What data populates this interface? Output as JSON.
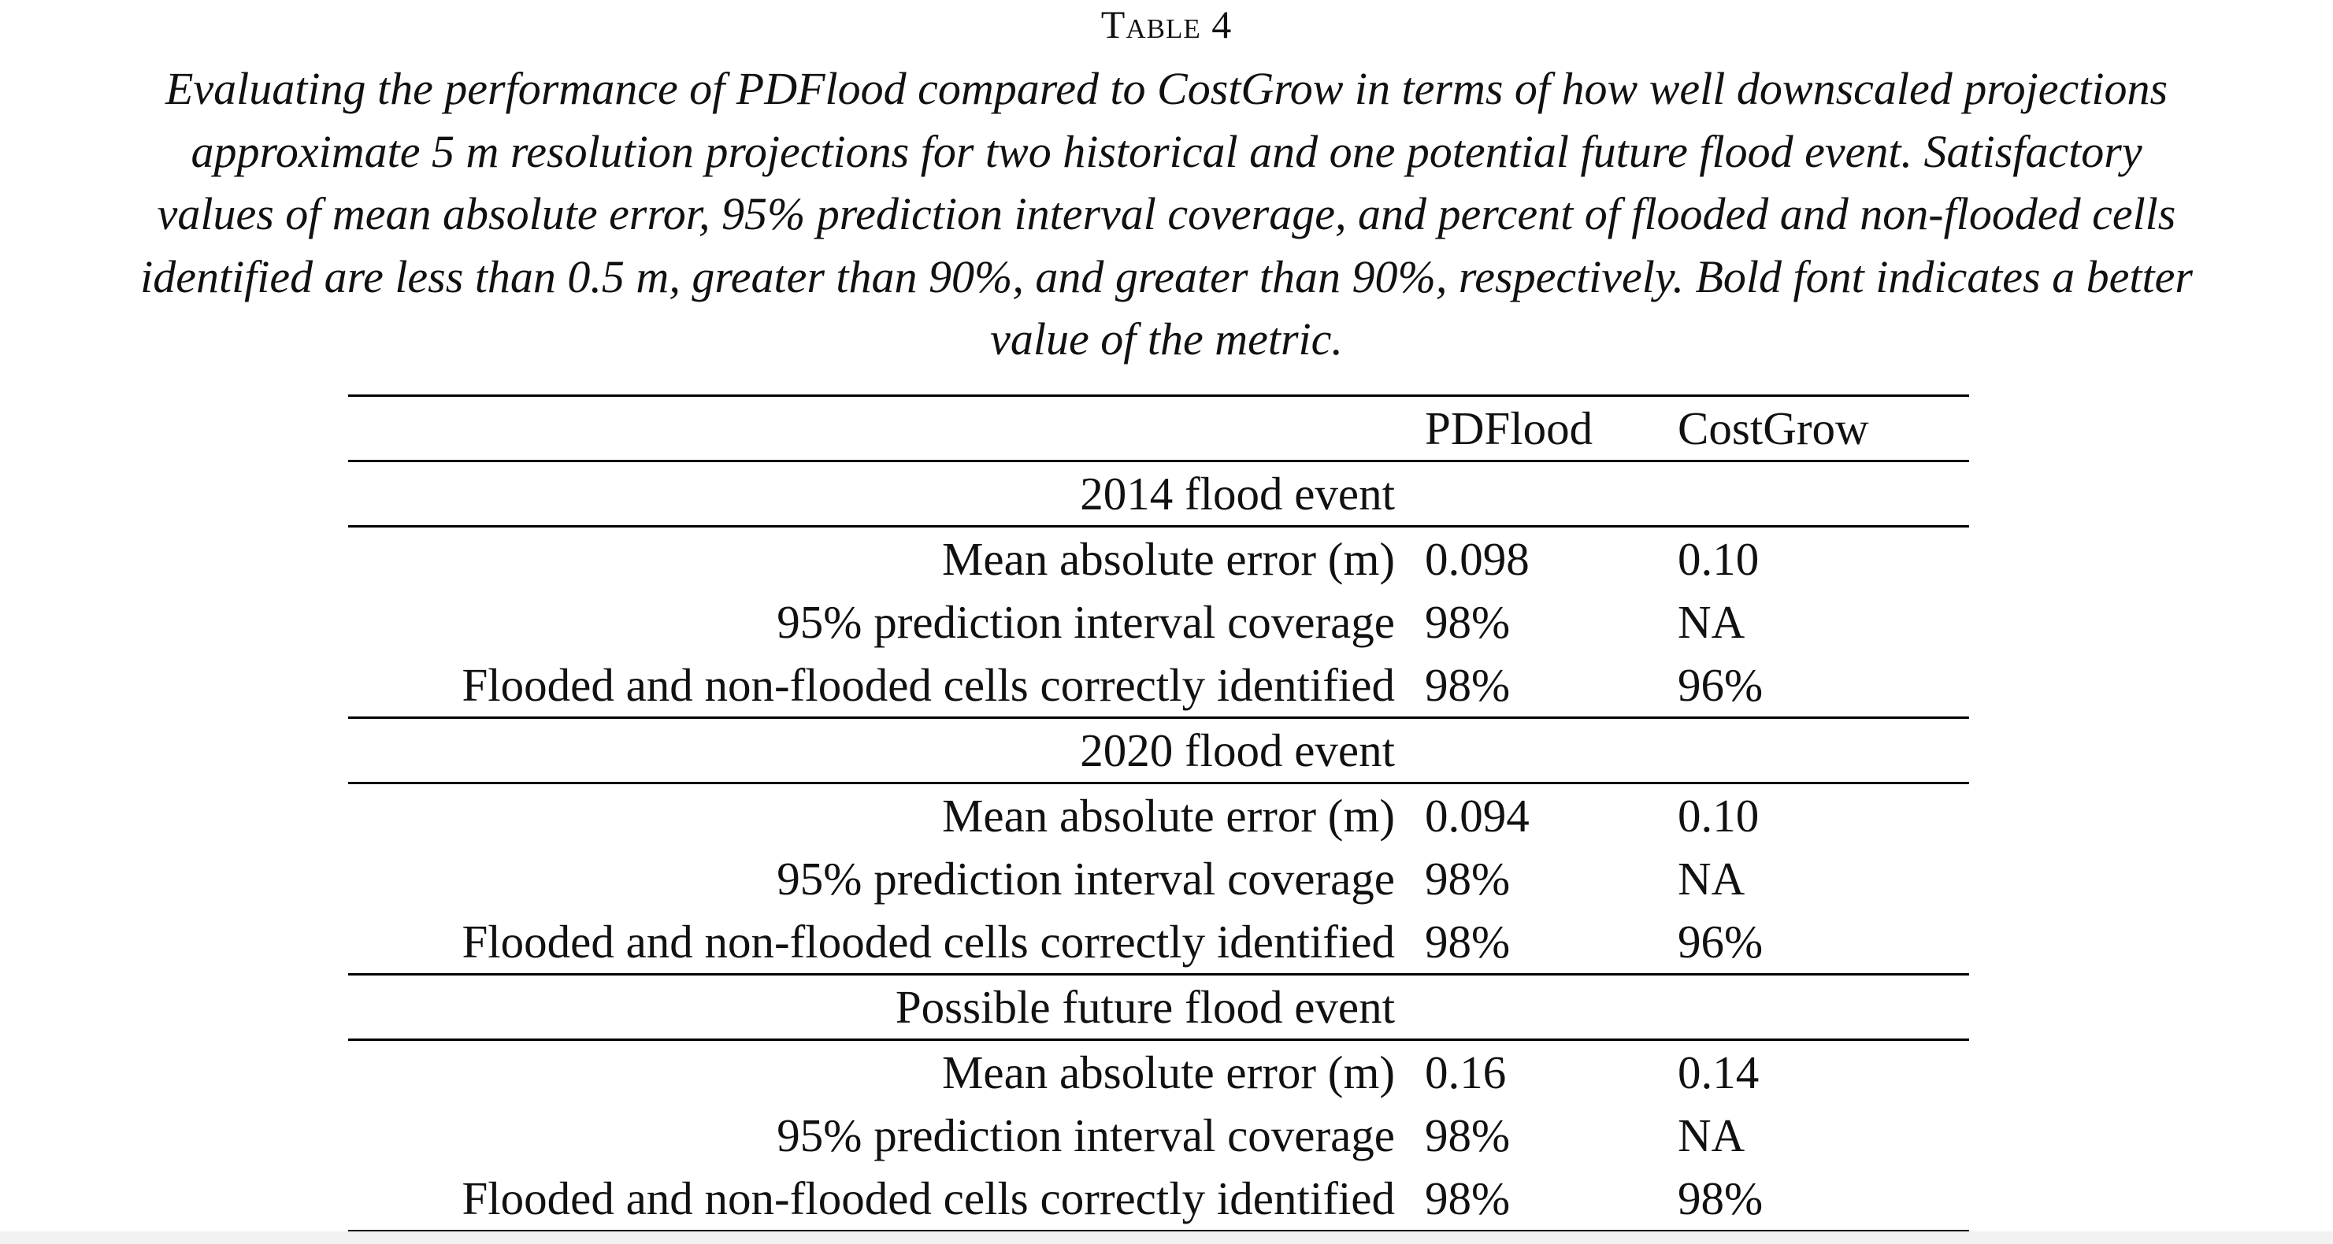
{
  "table_title": "Table 4",
  "caption_lines": [
    "Evaluating the performance of PDFlood compared to CostGrow in terms of how well downscaled projections",
    "approximate 5 m resolution projections for two historical and one potential future flood event. Satisfactory",
    "values of mean absolute error, 95% prediction interval coverage, and percent of flooded and non-flooded cells",
    "identified are less than 0.5 m, greater than 90%, and greater than 90%, respectively. Bold font indicates a better",
    "value of the metric."
  ],
  "table": {
    "columns": [
      "",
      "PDFlood",
      "CostGrow"
    ],
    "sections": [
      {
        "event": "2014 flood event",
        "rows": [
          {
            "metric": "Mean absolute error (m)",
            "pdflood": "0.098",
            "costgrow": "0.10",
            "bold": "pdflood"
          },
          {
            "metric": "95% prediction interval coverage",
            "pdflood": "98%",
            "costgrow": "NA",
            "bold": "pdflood"
          },
          {
            "metric": "Flooded and non-flooded cells correctly identified",
            "pdflood": "98%",
            "costgrow": "96%",
            "bold": "pdflood"
          }
        ]
      },
      {
        "event": "2020 flood event",
        "rows": [
          {
            "metric": "Mean absolute error (m)",
            "pdflood": "0.094",
            "costgrow": "0.10",
            "bold": "pdflood"
          },
          {
            "metric": "95% prediction interval coverage",
            "pdflood": "98%",
            "costgrow": "NA",
            "bold": "pdflood"
          },
          {
            "metric": "Flooded and non-flooded cells correctly identified",
            "pdflood": "98%",
            "costgrow": "96%",
            "bold": "pdflood"
          }
        ]
      },
      {
        "event": "Possible future flood event",
        "rows": [
          {
            "metric": "Mean absolute error (m)",
            "pdflood": "0.16",
            "costgrow": "0.14",
            "bold": "costgrow"
          },
          {
            "metric": "95% prediction interval coverage",
            "pdflood": "98%",
            "costgrow": "NA",
            "bold": "pdflood"
          },
          {
            "metric": "Flooded and non-flooded cells correctly identified",
            "pdflood": "98%",
            "costgrow": "98%",
            "bold": "none"
          }
        ]
      }
    ]
  }
}
